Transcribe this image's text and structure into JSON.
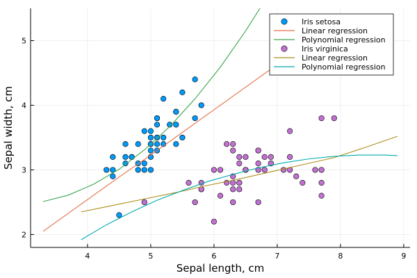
{
  "chart_data": {
    "type": "scatter",
    "title": "",
    "xlabel": "Sepal length, cm",
    "ylabel": "Sepal width, cm",
    "xlim": [
      3.1,
      9.1
    ],
    "ylim": [
      1.8,
      5.5
    ],
    "xticks": [
      4,
      5,
      6,
      7,
      8,
      9
    ],
    "yticks": [
      2,
      3,
      4,
      5
    ],
    "grid": true,
    "legend_position": "top-right",
    "series": [
      {
        "name": "Iris setosa",
        "kind": "scatter",
        "color": "#009AFA",
        "x": [
          4.3,
          4.4,
          4.4,
          4.4,
          4.5,
          4.6,
          4.6,
          4.6,
          4.7,
          4.7,
          4.8,
          4.8,
          4.8,
          4.9,
          4.9,
          4.9,
          5.0,
          5.0,
          5.0,
          5.0,
          5.0,
          5.0,
          5.0,
          5.1,
          5.1,
          5.1,
          5.1,
          5.1,
          5.1,
          5.1,
          5.2,
          5.2,
          5.2,
          5.3,
          5.4,
          5.4,
          5.4,
          5.4,
          5.5,
          5.5,
          5.7,
          5.7,
          5.8
        ],
        "y": [
          3.0,
          2.9,
          3.0,
          3.2,
          2.3,
          3.1,
          3.2,
          3.4,
          3.2,
          3.2,
          3.0,
          3.1,
          3.4,
          3.0,
          3.1,
          3.6,
          3.0,
          3.2,
          3.3,
          3.4,
          3.5,
          3.6,
          3.4,
          3.3,
          3.4,
          3.5,
          3.7,
          3.8,
          3.8,
          3.5,
          3.4,
          3.5,
          4.1,
          3.7,
          3.4,
          3.7,
          3.9,
          3.9,
          3.5,
          4.2,
          3.8,
          4.4,
          4.0
        ]
      },
      {
        "name": "Linear regression",
        "kind": "line",
        "color": "#E26F46",
        "x": [
          3.3,
          3.7,
          4.1,
          4.5,
          4.9,
          5.3,
          5.7,
          6.1,
          6.5,
          6.9
        ],
        "y": [
          2.05,
          2.33,
          2.61,
          2.89,
          3.16,
          3.44,
          3.72,
          4.0,
          4.28,
          4.56
        ]
      },
      {
        "name": "Polynomial regression",
        "kind": "line",
        "color": "#3DA44D",
        "x": [
          3.3,
          3.7,
          4.1,
          4.5,
          4.9,
          5.3,
          5.7,
          6.1,
          6.5,
          6.9,
          7.1
        ],
        "y": [
          2.51,
          2.61,
          2.78,
          3.01,
          3.31,
          3.67,
          4.1,
          4.59,
          5.15,
          5.77,
          6.1
        ]
      },
      {
        "name": "Iris virginica",
        "kind": "scatter",
        "color": "#C271D2",
        "x": [
          4.9,
          5.6,
          5.7,
          5.8,
          5.8,
          5.8,
          6.0,
          6.0,
          6.1,
          6.1,
          6.2,
          6.2,
          6.3,
          6.3,
          6.3,
          6.3,
          6.3,
          6.3,
          6.4,
          6.4,
          6.4,
          6.4,
          6.4,
          6.5,
          6.5,
          6.5,
          6.5,
          6.7,
          6.7,
          6.7,
          6.7,
          6.7,
          6.8,
          6.8,
          6.9,
          6.9,
          6.9,
          7.1,
          7.2,
          7.2,
          7.2,
          7.3,
          7.4,
          7.6,
          7.7,
          7.7,
          7.7,
          7.7,
          7.9
        ],
        "y": [
          2.5,
          2.8,
          2.5,
          2.8,
          2.7,
          2.7,
          2.2,
          3.0,
          3.0,
          2.6,
          2.8,
          3.4,
          2.7,
          2.8,
          2.9,
          3.3,
          3.4,
          2.5,
          2.8,
          3.1,
          3.2,
          2.7,
          2.8,
          3.0,
          3.2,
          3.0,
          3.0,
          3.3,
          3.1,
          3.0,
          2.5,
          3.3,
          3.0,
          3.2,
          3.1,
          3.2,
          3.1,
          3.0,
          3.2,
          3.6,
          3.0,
          2.9,
          2.8,
          3.0,
          3.8,
          2.6,
          2.8,
          3.0,
          3.8
        ]
      },
      {
        "name": "Linear regression",
        "kind": "line",
        "color": "#AC8D18",
        "x": [
          3.9,
          4.4,
          4.9,
          5.4,
          5.9,
          6.4,
          6.9,
          7.4,
          7.9,
          8.4,
          8.9
        ],
        "y": [
          2.35,
          2.45,
          2.55,
          2.65,
          2.76,
          2.86,
          2.97,
          3.08,
          3.19,
          3.35,
          3.52
        ]
      },
      {
        "name": "Polynomial regression",
        "kind": "line",
        "color": "#00A9AD",
        "x": [
          3.9,
          4.3,
          4.7,
          5.1,
          5.5,
          5.9,
          6.3,
          6.7,
          7.1,
          7.5,
          7.9,
          8.3,
          8.7,
          8.9
        ],
        "y": [
          1.92,
          2.15,
          2.35,
          2.53,
          2.68,
          2.82,
          2.93,
          3.03,
          3.11,
          3.17,
          3.21,
          3.23,
          3.23,
          3.22
        ]
      }
    ]
  }
}
